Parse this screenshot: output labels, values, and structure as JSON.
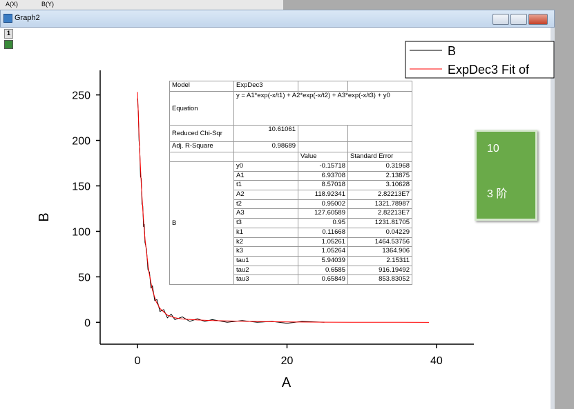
{
  "window": {
    "title": "Graph2",
    "layer": "1"
  },
  "worksheet": {
    "columns": [
      "A(X)",
      "B(Y)"
    ]
  },
  "chart_data": {
    "type": "line",
    "x_label": "A",
    "y_label": "B",
    "xlim": [
      -5,
      45
    ],
    "ylim": [
      -24,
      277
    ],
    "xticks": [
      0,
      20,
      40
    ],
    "yticks": [
      0,
      50,
      100,
      150,
      200,
      250
    ],
    "legend": "top-right",
    "series": [
      {
        "name": "B",
        "color": "#000000",
        "x": [
          0,
          0.1,
          0.2,
          0.3,
          0.4,
          0.5,
          0.6,
          0.7,
          0.8,
          0.9,
          1,
          1.2,
          1.4,
          1.6,
          1.8,
          2,
          2.3,
          2.6,
          3,
          3.5,
          4,
          4.5,
          5,
          6,
          7,
          8,
          9,
          10,
          12,
          14,
          16,
          18,
          20,
          22,
          25
        ],
        "values": [
          246,
          232,
          200,
          190,
          160,
          158,
          130,
          128,
          105,
          108,
          88,
          80,
          58,
          55,
          38,
          40,
          24,
          25,
          12,
          14,
          5,
          9,
          3,
          6,
          1,
          4,
          1,
          3,
          0,
          2,
          0,
          1,
          -1,
          1,
          0
        ]
      },
      {
        "name": "ExpDec3 Fit of",
        "color": "#ff0000",
        "x": [
          0,
          0.25,
          0.5,
          0.75,
          1,
          1.5,
          2,
          2.5,
          3,
          4,
          5,
          6,
          8,
          10,
          15,
          20,
          25,
          30,
          35,
          39
        ],
        "values": [
          253.2,
          196.1,
          152.1,
          118.1,
          92.0,
          56.5,
          35.3,
          22.7,
          15.2,
          7.85,
          5.0,
          3.7,
          2.6,
          2.0,
          1.05,
          0.5,
          0.2,
          0.05,
          0.0,
          -0.05
        ]
      }
    ]
  },
  "fit_table": {
    "rows": [
      [
        "Model",
        "ExpDec3"
      ],
      [
        "Equation",
        "y = A1*exp(-x/t1) + A2*exp(-x/t2) + A3*exp(-x/t3) + y0"
      ],
      [
        "Reduced Chi-Sqr",
        "10.61061"
      ],
      [
        "Adj. R-Square",
        "0.98689"
      ]
    ],
    "param_header": [
      "Value",
      "Standard Error"
    ],
    "param_group": "B",
    "params": [
      [
        "y0",
        "-0.15718",
        "0.31968"
      ],
      [
        "A1",
        "6.93708",
        "2.13875"
      ],
      [
        "t1",
        "8.57018",
        "3.10628"
      ],
      [
        "A2",
        "118.92341",
        "2.82213E7"
      ],
      [
        "t2",
        "0.95002",
        "1321.78987"
      ],
      [
        "A3",
        "127.60589",
        "2.82213E7"
      ],
      [
        "t3",
        "0.95",
        "1231.81705"
      ],
      [
        "k1",
        "0.11668",
        "0.04229"
      ],
      [
        "k2",
        "1.05261",
        "1464.53756"
      ],
      [
        "k3",
        "1.05264",
        "1364.906"
      ],
      [
        "tau1",
        "5.94039",
        "2.15311"
      ],
      [
        "tau2",
        "0.6585",
        "916.19492"
      ],
      [
        "tau3",
        "0.65849",
        "853.83052"
      ]
    ]
  },
  "note_box": {
    "lines": [
      "10",
      "3 阶"
    ]
  }
}
